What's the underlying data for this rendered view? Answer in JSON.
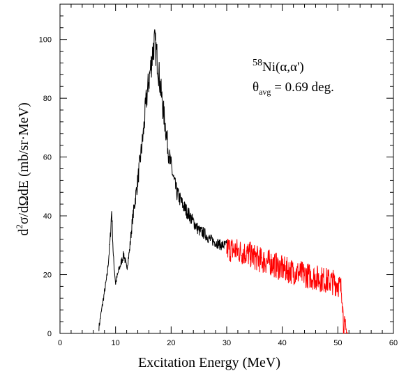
{
  "chart_data": {
    "type": "line",
    "title": "",
    "xlabel": "Excitation Energy (MeV)",
    "ylabel_parts": {
      "d": "d",
      "exp2": "2",
      "rest": "σ/dΩdE (mb/sr·MeV)"
    },
    "xlim": [
      0,
      60
    ],
    "ylim": [
      0,
      112
    ],
    "x_ticks": [
      0,
      10,
      20,
      30,
      40,
      50,
      60
    ],
    "y_ticks": [
      0,
      20,
      40,
      60,
      80,
      100
    ],
    "grid": false,
    "annotation": {
      "reaction": {
        "mass": "58",
        "text": "Ni(α,α')"
      },
      "angle": {
        "symbol": "θ",
        "sub": "avg",
        "text": " = 0.69 deg."
      }
    },
    "series": [
      {
        "color": "#000000",
        "x": [
          7.0,
          7.5,
          8.0,
          8.5,
          9.0,
          9.3,
          9.6,
          10.0,
          10.5,
          11.0,
          11.5,
          12.0,
          12.5,
          13.0,
          13.5,
          14.0,
          14.5,
          15.0,
          15.5,
          16.0,
          16.5,
          16.8,
          17.0,
          17.3,
          17.6,
          18.0,
          18.5,
          19.0,
          19.5,
          20.0,
          20.5,
          21.0,
          21.5,
          22.0,
          23.0,
          24.0,
          25.0,
          26.0,
          27.0,
          28.0,
          29.0,
          30.0
        ],
        "y": [
          2,
          8,
          14,
          20,
          31,
          42,
          26,
          17,
          21,
          24,
          27,
          22,
          28,
          38,
          45,
          52,
          60,
          68,
          79,
          86,
          93,
          97,
          99,
          96,
          92,
          85,
          77,
          70,
          62,
          57,
          52,
          48,
          46,
          44,
          41,
          38,
          35,
          34,
          32,
          31,
          30,
          30
        ]
      },
      {
        "color": "#ff0000",
        "x": [
          30,
          32,
          34,
          36,
          38,
          40,
          42,
          44,
          46,
          48,
          50,
          50.6,
          50.8,
          51.0,
          51.3,
          51.8
        ],
        "y": [
          29,
          28,
          27,
          25,
          24,
          22,
          21,
          20,
          19,
          18,
          17,
          15,
          14,
          3,
          1,
          0
        ]
      }
    ]
  }
}
